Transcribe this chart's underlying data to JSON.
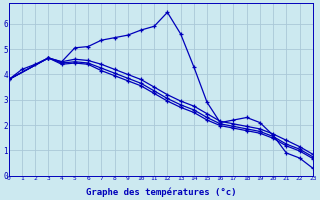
{
  "xlabel": "Graphe des températures (°c)",
  "bg_color": "#cce9f0",
  "grid_color": "#aac8d8",
  "line_color": "#0000bb",
  "x_min": 0,
  "x_max": 23,
  "y_min": 0,
  "y_max": 6.8,
  "x_ticks": [
    0,
    1,
    2,
    3,
    4,
    5,
    6,
    7,
    8,
    9,
    10,
    11,
    12,
    13,
    14,
    15,
    16,
    17,
    18,
    19,
    20,
    21,
    22,
    23
  ],
  "y_ticks": [
    0,
    1,
    2,
    3,
    4,
    5,
    6
  ],
  "line1_x": [
    0,
    1,
    2,
    3,
    4,
    5,
    6,
    7,
    8,
    9,
    10,
    11,
    12,
    13,
    14,
    15,
    16,
    17,
    18,
    19,
    20,
    21,
    22,
    23
  ],
  "line1_y": [
    3.8,
    4.2,
    4.4,
    4.65,
    4.5,
    5.05,
    5.1,
    5.35,
    5.45,
    5.55,
    5.75,
    5.9,
    6.45,
    5.6,
    4.3,
    2.9,
    2.1,
    2.2,
    2.3,
    2.1,
    1.6,
    0.9,
    0.7,
    0.3
  ],
  "line2_x": [
    0,
    3,
    4,
    5,
    6,
    7,
    8,
    9,
    10,
    11,
    12,
    13,
    14,
    15,
    16,
    17,
    18,
    19,
    20,
    21,
    22,
    23
  ],
  "line2_y": [
    3.8,
    4.65,
    4.5,
    4.6,
    4.55,
    4.4,
    4.2,
    4.0,
    3.8,
    3.5,
    3.2,
    2.95,
    2.75,
    2.45,
    2.15,
    2.05,
    1.95,
    1.85,
    1.65,
    1.4,
    1.15,
    0.85
  ],
  "line3_x": [
    0,
    3,
    4,
    5,
    6,
    7,
    8,
    9,
    10,
    11,
    12,
    13,
    14,
    15,
    16,
    17,
    18,
    19,
    20,
    21,
    22,
    23
  ],
  "line3_y": [
    3.8,
    4.65,
    4.45,
    4.5,
    4.45,
    4.25,
    4.05,
    3.85,
    3.65,
    3.35,
    3.05,
    2.8,
    2.6,
    2.3,
    2.05,
    1.95,
    1.85,
    1.75,
    1.55,
    1.25,
    1.05,
    0.75
  ],
  "line4_x": [
    0,
    3,
    4,
    5,
    6,
    7,
    8,
    9,
    10,
    11,
    12,
    13,
    14,
    15,
    16,
    17,
    18,
    19,
    20,
    21,
    22,
    23
  ],
  "line4_y": [
    3.8,
    4.65,
    4.4,
    4.45,
    4.4,
    4.15,
    3.95,
    3.75,
    3.55,
    3.25,
    2.95,
    2.7,
    2.5,
    2.2,
    1.98,
    1.88,
    1.78,
    1.68,
    1.48,
    1.18,
    0.98,
    0.68
  ]
}
